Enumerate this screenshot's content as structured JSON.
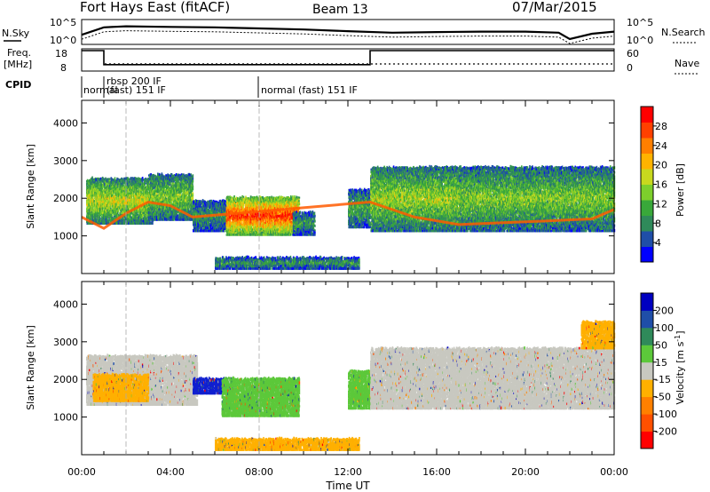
{
  "header": {
    "title": "Fort Hays East (fitACF)",
    "beam": "Beam 13",
    "date": "07/Mar/2015"
  },
  "top_strip": {
    "nsky_label": "N.Sky",
    "nsky_ticks": [
      "10^5",
      "10^0"
    ],
    "nsearch_label": "N.Search",
    "nsearch_ticks": [
      "10^5",
      "10^0"
    ],
    "freq_label": "Freq.",
    "freq_unit": "[MHz]",
    "freq_ticks": [
      "18",
      "8"
    ],
    "nave_label": "Nave",
    "nave_ticks": [
      "60",
      "0"
    ],
    "cpid_label": "CPID",
    "cpid_segments": [
      {
        "start": 0,
        "end": 1,
        "text": "normal"
      },
      {
        "start": 1,
        "end": 8,
        "text": "rbsp 200 IF"
      },
      {
        "start": 1,
        "end": 8,
        "text": "(fast) 151 IF"
      },
      {
        "start": 8,
        "end": 24,
        "text": "normal (fast) 151 IF"
      }
    ],
    "freq_data": {
      "hours": [
        0,
        1,
        1,
        13,
        13,
        24
      ],
      "mhz": [
        18,
        18,
        10.5,
        10.5,
        18,
        18
      ]
    },
    "nsky_profile": {
      "hours": [
        0,
        1,
        2,
        4,
        6,
        8,
        10,
        12,
        14,
        16,
        18,
        20,
        21.5,
        22,
        23,
        24
      ],
      "level": [
        0.45,
        0.8,
        0.85,
        0.82,
        0.8,
        0.75,
        0.7,
        0.62,
        0.55,
        0.58,
        0.6,
        0.6,
        0.55,
        0.25,
        0.5,
        0.6
      ]
    }
  },
  "chart_data": [
    {
      "type": "heatmap",
      "name": "power",
      "xlabel": "",
      "ylabel": "Slant Range [km]",
      "xlim": [
        0,
        24
      ],
      "ylim": [
        0,
        4600
      ],
      "yticks": [
        "1000",
        "2000",
        "3000",
        "4000"
      ],
      "colorbar": {
        "label": "Power [dB]",
        "ticks": [
          "4",
          "8",
          "12",
          "16",
          "20",
          "24",
          "28"
        ],
        "colors": [
          "#0000ff",
          "#1f4ea8",
          "#2f8a5a",
          "#39a83a",
          "#7dcf2c",
          "#c8d81e",
          "#ffb300",
          "#ff7f00",
          "#ff4000",
          "#ff0000"
        ]
      },
      "regions": [
        {
          "t0": 0.2,
          "t1": 3.2,
          "r0": 1300,
          "r1": 2500,
          "level": 0.55
        },
        {
          "t0": 3.0,
          "t1": 5.0,
          "r0": 1400,
          "r1": 2600,
          "level": 0.45
        },
        {
          "t0": 5.0,
          "t1": 6.5,
          "r0": 1100,
          "r1": 1900,
          "level": 0.3
        },
        {
          "t0": 6.5,
          "t1": 9.8,
          "r0": 1000,
          "r1": 2000,
          "level": 0.9
        },
        {
          "t0": 9.5,
          "t1": 10.5,
          "r0": 1000,
          "r1": 1600,
          "level": 0.3
        },
        {
          "t0": 12.0,
          "t1": 13.0,
          "r0": 1200,
          "r1": 2200,
          "level": 0.35
        },
        {
          "t0": 13.0,
          "t1": 17.0,
          "r0": 1100,
          "r1": 2800,
          "level": 0.5
        },
        {
          "t0": 17.0,
          "t1": 24.0,
          "r0": 1100,
          "r1": 2800,
          "level": 0.45
        },
        {
          "t0": 6.0,
          "t1": 12.5,
          "r0": 100,
          "r1": 400,
          "level": 0.3
        }
      ],
      "ridge": {
        "hours": [
          0,
          1,
          2,
          3,
          4,
          5,
          13,
          15,
          17,
          19,
          21,
          23,
          24
        ],
        "range": [
          1500,
          1200,
          1600,
          1900,
          1800,
          1500,
          1900,
          1500,
          1300,
          1350,
          1400,
          1450,
          1700
        ]
      }
    },
    {
      "type": "heatmap",
      "name": "velocity",
      "xlabel": "Time UT",
      "ylabel": "Slant Range [km]",
      "xlim": [
        0,
        24
      ],
      "ylim": [
        0,
        4600
      ],
      "xticks": [
        "00:00",
        "04:00",
        "08:00",
        "12:00",
        "16:00",
        "20:00",
        "00:00"
      ],
      "yticks": [
        "1000",
        "2000",
        "3000",
        "4000"
      ],
      "colorbar": {
        "label": "Velocity [m s",
        "label_sup": "-1",
        "label_end": "]",
        "ticks": [
          "200",
          "100",
          "50",
          "15",
          "-15",
          "-50",
          "-100",
          "-200"
        ],
        "colors": [
          "#0000c0",
          "#1f4ea8",
          "#2f8a5a",
          "#5cc83a",
          "#c8c8c0",
          "#ffb000",
          "#ff8000",
          "#ff5000",
          "#ff0000"
        ]
      },
      "regions": [
        {
          "t0": 0.2,
          "t1": 5.2,
          "r0": 1300,
          "r1": 2600,
          "color": "#c8c8c0"
        },
        {
          "t0": 0.5,
          "t1": 3.0,
          "r0": 1400,
          "r1": 2100,
          "color": "#ffb000"
        },
        {
          "t0": 5.0,
          "t1": 6.8,
          "r0": 1600,
          "r1": 2000,
          "color": "#1020d0"
        },
        {
          "t0": 6.3,
          "t1": 9.8,
          "r0": 1000,
          "r1": 2000,
          "color": "#5cc83a"
        },
        {
          "t0": 12.0,
          "t1": 13.0,
          "r0": 1200,
          "r1": 2200,
          "color": "#5cc83a"
        },
        {
          "t0": 13.0,
          "t1": 24.0,
          "r0": 1200,
          "r1": 2800,
          "color": "#c8c8c0"
        },
        {
          "t0": 6.0,
          "t1": 12.5,
          "r0": 100,
          "r1": 400,
          "color": "#ffb000"
        },
        {
          "t0": 22.5,
          "t1": 24.0,
          "r0": 2800,
          "r1": 3500,
          "color": "#ffb000"
        }
      ]
    }
  ]
}
